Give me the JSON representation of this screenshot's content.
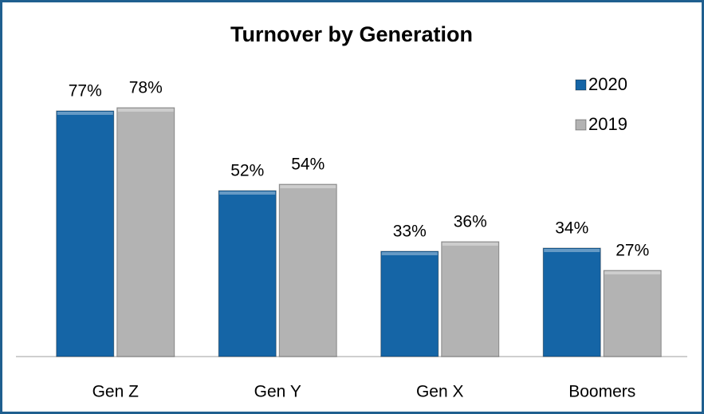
{
  "chart_data": {
    "type": "bar",
    "title": "Turnover by Generation",
    "categories": [
      "Gen Z",
      "Gen Y",
      "Gen X",
      "Boomers"
    ],
    "series": [
      {
        "name": "2020",
        "color": "#1565a6",
        "values": [
          77,
          52,
          33,
          34
        ],
        "value_labels": [
          "77%",
          "52%",
          "33%",
          "34%"
        ]
      },
      {
        "name": "2019",
        "color": "#b3b3b3",
        "values": [
          78,
          54,
          36,
          27
        ],
        "value_labels": [
          "78%",
          "54%",
          "36%",
          "27%"
        ]
      }
    ],
    "ylim": [
      0,
      100
    ],
    "legend": "top-right"
  }
}
